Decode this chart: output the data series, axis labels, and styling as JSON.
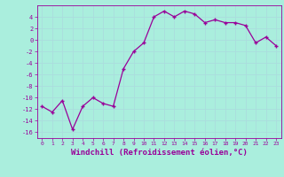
{
  "x": [
    0,
    1,
    2,
    3,
    4,
    5,
    6,
    7,
    8,
    9,
    10,
    11,
    12,
    13,
    14,
    15,
    16,
    17,
    18,
    19,
    20,
    21,
    22,
    23
  ],
  "y": [
    -11.5,
    -12.5,
    -10.5,
    -15.5,
    -11.5,
    -10.0,
    -11.0,
    -11.5,
    -5.0,
    -2.0,
    -0.5,
    4.0,
    5.0,
    4.0,
    5.0,
    4.5,
    3.0,
    3.5,
    3.0,
    3.0,
    2.5,
    -0.5,
    0.5,
    -1.0
  ],
  "line_color_hex": "#990099",
  "marker": "+",
  "bg_color": "#aaeedd",
  "grid_color": "#cceeee",
  "xlabel": "Windchill (Refroidissement éolien,°C)",
  "ylim": [
    -17,
    6
  ],
  "xlim": [
    -0.5,
    23.5
  ],
  "yticks": [
    -16,
    -14,
    -12,
    -10,
    -8,
    -6,
    -4,
    -2,
    0,
    2,
    4
  ],
  "xticks": [
    0,
    1,
    2,
    3,
    4,
    5,
    6,
    7,
    8,
    9,
    10,
    11,
    12,
    13,
    14,
    15,
    16,
    17,
    18,
    19,
    20,
    21,
    22,
    23
  ],
  "marker_size": 3,
  "line_width": 0.9
}
